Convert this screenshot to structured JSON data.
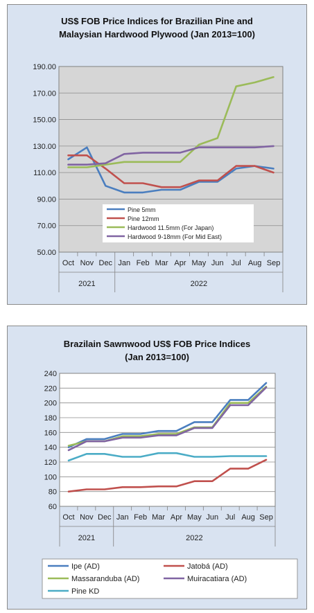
{
  "chart_data": [
    {
      "type": "line",
      "title_lines": [
        "US$ FOB Price Indices for Brazilian Pine and",
        "Malaysian Hardwood Plywood (Jan 2013=100)"
      ],
      "categories": [
        "Oct",
        "Nov",
        "Dec",
        "Jan",
        "Feb",
        "Mar",
        "Apr",
        "May",
        "Jun",
        "Jul",
        "Aug",
        "Sep"
      ],
      "year_groups": [
        {
          "label": "2021",
          "start": 0,
          "end": 2
        },
        {
          "label": "2022",
          "start": 3,
          "end": 11
        }
      ],
      "ylim": [
        50,
        190
      ],
      "yticks": [
        "50.00",
        "70.00",
        "90.00",
        "110.00",
        "130.00",
        "150.00",
        "170.00",
        "190.00"
      ],
      "grid": true,
      "legend_position": "inside-bottom-center",
      "colors": {
        "plot_bg": "#d6d6d6"
      },
      "series": [
        {
          "name": "Pine 5mm",
          "color": "#4a7ebf",
          "values": [
            120,
            129,
            100,
            95,
            95,
            97,
            97,
            103,
            103,
            113,
            115,
            113
          ]
        },
        {
          "name": "Pine 12mm",
          "color": "#c0504d",
          "values": [
            123,
            123,
            113,
            102,
            102,
            99,
            99,
            104,
            104,
            115,
            115,
            110
          ]
        },
        {
          "name": "Hardwood 11.5mm (For Japan)",
          "color": "#9bbb59",
          "values": [
            114,
            114,
            116,
            118,
            118,
            118,
            118,
            131,
            136,
            175,
            178,
            182
          ]
        },
        {
          "name": "Hardwood 9-18mm (For Mid East)",
          "color": "#8064a2",
          "values": [
            116,
            116,
            117,
            124,
            125,
            125,
            125,
            129,
            129,
            129,
            129,
            130
          ]
        }
      ]
    },
    {
      "type": "line",
      "title_lines": [
        "Brazilain Sawnwood US$ FOB Price Indices",
        "(Jan 2013=100)"
      ],
      "categories": [
        "Oct",
        "Nov",
        "Dec",
        "Jan",
        "Feb",
        "Mar",
        "Apr",
        "May",
        "Jun",
        "Jul",
        "Aug",
        "Sep"
      ],
      "year_groups": [
        {
          "label": "2021",
          "start": 0,
          "end": 2
        },
        {
          "label": "2022",
          "start": 3,
          "end": 11
        }
      ],
      "ylim": [
        60,
        240
      ],
      "yticks": [
        "60",
        "80",
        "100",
        "120",
        "140",
        "160",
        "180",
        "200",
        "220",
        "240"
      ],
      "grid": true,
      "legend_position": "bottom",
      "colors": {
        "plot_bg": "#ffffff"
      },
      "series": [
        {
          "name": "Ipe (AD)",
          "color": "#4a7ebf",
          "values": [
            140,
            151,
            151,
            158,
            158,
            162,
            162,
            174,
            174,
            204,
            204,
            227
          ]
        },
        {
          "name": "Jatobá (AD)",
          "color": "#c0504d",
          "values": [
            80,
            83,
            83,
            86,
            86,
            87,
            87,
            94,
            94,
            111,
            111,
            123
          ]
        },
        {
          "name": "Massaranduba (AD)",
          "color": "#9bbb59",
          "values": [
            142,
            148,
            148,
            155,
            155,
            158,
            158,
            167,
            167,
            200,
            200,
            222
          ]
        },
        {
          "name": "Muiracatiara (AD)",
          "color": "#8064a2",
          "values": [
            136,
            148,
            148,
            153,
            153,
            156,
            156,
            166,
            166,
            197,
            197,
            221
          ]
        },
        {
          "name": "Pine KD",
          "color": "#4bacc6",
          "values": [
            122,
            131,
            131,
            127,
            127,
            132,
            132,
            127,
            127,
            128,
            128,
            128
          ]
        }
      ]
    }
  ]
}
